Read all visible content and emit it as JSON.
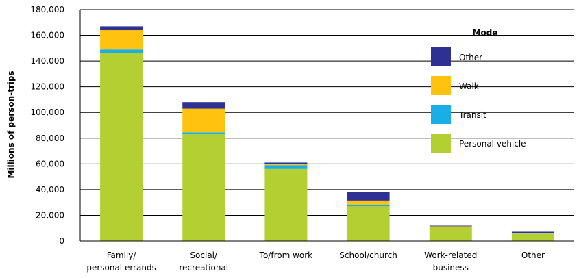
{
  "chart_data": {
    "type": "bar",
    "stacked": true,
    "ylabel": "Millions of person-trips",
    "ylim": [
      0,
      180000
    ],
    "yticks": [
      0,
      20000,
      40000,
      60000,
      80000,
      100000,
      120000,
      140000,
      160000,
      180000
    ],
    "ytick_labels": [
      "0",
      "20,000",
      "40,000",
      "60,000",
      "80,000",
      "100,000",
      "120,000",
      "140,000",
      "160,000",
      "180,000"
    ],
    "grid": true,
    "categories": [
      [
        "Family/",
        "personal errands"
      ],
      [
        "Social/",
        "recreational"
      ],
      [
        "To/from work"
      ],
      [
        "School/church"
      ],
      [
        "Work-related",
        "business"
      ],
      [
        "Other"
      ]
    ],
    "series": [
      {
        "name": "Personal vehicle",
        "color": "#b3cf32",
        "values": [
          146000,
          83000,
          56000,
          27000,
          11000,
          5500
        ]
      },
      {
        "name": "Transit",
        "color": "#19aee6",
        "values": [
          3000,
          1500,
          3000,
          1000,
          200,
          200
        ]
      },
      {
        "name": "Walk",
        "color": "#ffc20e",
        "values": [
          15000,
          18500,
          1000,
          3500,
          300,
          500
        ]
      },
      {
        "name": "Other",
        "color": "#2e3192",
        "values": [
          3000,
          5000,
          1000,
          6500,
          500,
          1000
        ]
      }
    ],
    "legend": {
      "title": "Mode",
      "position": "top-right",
      "order": [
        "Other",
        "Walk",
        "Transit",
        "Personal vehicle"
      ]
    }
  }
}
